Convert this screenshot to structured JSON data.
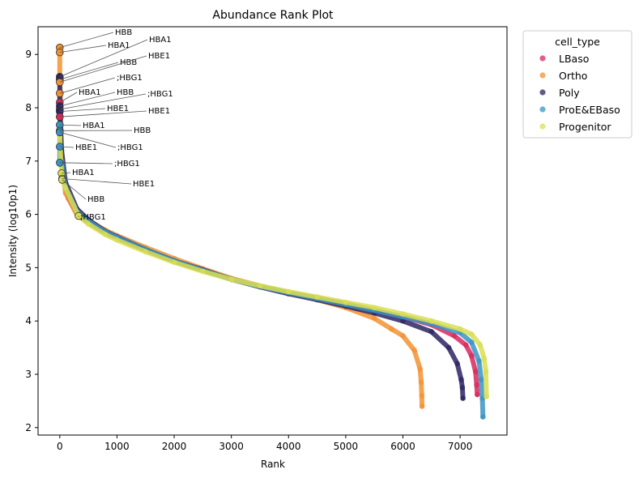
{
  "chart_data": {
    "type": "scatter",
    "title": "Abundance Rank Plot",
    "xlabel": "Rank",
    "ylabel": "Intensity (log10p1)",
    "xlim": [
      -380,
      7820
    ],
    "ylim": [
      1.86,
      9.52
    ],
    "xticks": [
      0,
      1000,
      2000,
      3000,
      4000,
      5000,
      6000,
      7000
    ],
    "yticks": [
      2,
      3,
      4,
      5,
      6,
      7,
      8,
      9
    ],
    "grid": false,
    "legend": {
      "title": "cell_type",
      "placement": "outside-top-right",
      "entries": [
        "LBaso",
        "Ortho",
        "Poly",
        "ProE&EBaso",
        "Progenitor"
      ]
    },
    "series": [
      {
        "name": "LBaso",
        "color": "#d8285e",
        "points": [
          [
            0,
            8.1
          ],
          [
            10,
            7.6
          ],
          [
            50,
            6.8
          ],
          [
            150,
            6.3
          ],
          [
            300,
            6.0
          ],
          [
            500,
            5.85
          ],
          [
            800,
            5.65
          ],
          [
            1000,
            5.56
          ],
          [
            1500,
            5.33
          ],
          [
            2000,
            5.12
          ],
          [
            2500,
            4.95
          ],
          [
            3000,
            4.78
          ],
          [
            3500,
            4.65
          ],
          [
            4000,
            4.53
          ],
          [
            4500,
            4.43
          ],
          [
            5000,
            4.32
          ],
          [
            5500,
            4.2
          ],
          [
            6000,
            4.08
          ],
          [
            6500,
            3.93
          ],
          [
            6900,
            3.72
          ],
          [
            7100,
            3.55
          ],
          [
            7200,
            3.35
          ],
          [
            7270,
            3.05
          ],
          [
            7290,
            2.8
          ],
          [
            7300,
            2.62
          ]
        ]
      },
      {
        "name": "Ortho",
        "color": "#f39232",
        "points": [
          [
            0,
            9.1
          ],
          [
            0,
            8.48
          ],
          [
            10,
            8.25
          ],
          [
            30,
            7.0
          ],
          [
            100,
            6.4
          ],
          [
            300,
            6.0
          ],
          [
            500,
            5.88
          ],
          [
            800,
            5.7
          ],
          [
            1000,
            5.6
          ],
          [
            1500,
            5.38
          ],
          [
            2000,
            5.17
          ],
          [
            2500,
            4.98
          ],
          [
            3000,
            4.8
          ],
          [
            3500,
            4.66
          ],
          [
            4000,
            4.53
          ],
          [
            4500,
            4.4
          ],
          [
            5000,
            4.25
          ],
          [
            5500,
            4.05
          ],
          [
            5800,
            3.85
          ],
          [
            6000,
            3.72
          ],
          [
            6200,
            3.45
          ],
          [
            6300,
            3.1
          ],
          [
            6320,
            2.85
          ],
          [
            6330,
            2.6
          ],
          [
            6335,
            2.4
          ]
        ]
      },
      {
        "name": "Poly",
        "color": "#2c2462",
        "points": [
          [
            0,
            8.58
          ],
          [
            0,
            8.0
          ],
          [
            0,
            7.95
          ],
          [
            30,
            7.2
          ],
          [
            100,
            6.6
          ],
          [
            300,
            6.1
          ],
          [
            500,
            5.9
          ],
          [
            800,
            5.68
          ],
          [
            1000,
            5.58
          ],
          [
            1500,
            5.34
          ],
          [
            2000,
            5.13
          ],
          [
            2500,
            4.96
          ],
          [
            3000,
            4.78
          ],
          [
            3500,
            4.64
          ],
          [
            4000,
            4.51
          ],
          [
            4500,
            4.4
          ],
          [
            5000,
            4.28
          ],
          [
            5500,
            4.15
          ],
          [
            6000,
            4.0
          ],
          [
            6500,
            3.8
          ],
          [
            6800,
            3.5
          ],
          [
            6950,
            3.2
          ],
          [
            7020,
            2.9
          ],
          [
            7040,
            2.75
          ],
          [
            7050,
            2.55
          ]
        ]
      },
      {
        "name": "ProE&EBaso",
        "color": "#3a94c4",
        "points": [
          [
            0,
            7.7
          ],
          [
            0,
            7.55
          ],
          [
            0,
            7.28
          ],
          [
            0,
            6.97
          ],
          [
            30,
            7.0
          ],
          [
            100,
            6.5
          ],
          [
            300,
            6.05
          ],
          [
            500,
            5.87
          ],
          [
            800,
            5.67
          ],
          [
            1000,
            5.57
          ],
          [
            1500,
            5.34
          ],
          [
            2000,
            5.13
          ],
          [
            2500,
            4.95
          ],
          [
            3000,
            4.78
          ],
          [
            3500,
            4.65
          ],
          [
            4000,
            4.53
          ],
          [
            4500,
            4.42
          ],
          [
            5000,
            4.31
          ],
          [
            5500,
            4.2
          ],
          [
            6000,
            4.08
          ],
          [
            6500,
            3.95
          ],
          [
            7000,
            3.78
          ],
          [
            7200,
            3.6
          ],
          [
            7330,
            3.25
          ],
          [
            7370,
            2.9
          ],
          [
            7390,
            2.55
          ],
          [
            7400,
            2.2
          ]
        ]
      },
      {
        "name": "Progenitor",
        "color": "#d9df51",
        "points": [
          [
            0,
            7.45
          ],
          [
            30,
            6.75
          ],
          [
            40,
            6.65
          ],
          [
            330,
            5.97
          ],
          [
            100,
            6.5
          ],
          [
            500,
            5.82
          ],
          [
            800,
            5.62
          ],
          [
            1000,
            5.52
          ],
          [
            1500,
            5.3
          ],
          [
            2000,
            5.1
          ],
          [
            2500,
            4.93
          ],
          [
            3000,
            4.78
          ],
          [
            3500,
            4.66
          ],
          [
            4000,
            4.55
          ],
          [
            4500,
            4.45
          ],
          [
            5000,
            4.35
          ],
          [
            5500,
            4.25
          ],
          [
            6000,
            4.13
          ],
          [
            6500,
            4.0
          ],
          [
            7000,
            3.85
          ],
          [
            7200,
            3.75
          ],
          [
            7350,
            3.55
          ],
          [
            7420,
            3.3
          ],
          [
            7450,
            3.05
          ],
          [
            7460,
            2.58
          ]
        ]
      }
    ],
    "annotations": [
      {
        "label": "HBB",
        "x": 0,
        "y": 9.13,
        "series": "Ortho"
      },
      {
        "label": "HBA1",
        "x": 0,
        "y": 9.04,
        "series": "Ortho"
      },
      {
        "label": "HBA1",
        "x": 0,
        "y": 8.58,
        "series": "Poly"
      },
      {
        "label": "HBB",
        "x": 0,
        "y": 8.53,
        "series": "Poly"
      },
      {
        "label": "HBE1",
        "x": 0,
        "y": 8.48,
        "series": "Ortho"
      },
      {
        "label": ";HBG1",
        "x": 0,
        "y": 8.27,
        "series": "Ortho"
      },
      {
        "label": "HBA1",
        "x": 0,
        "y": 8.1,
        "series": "LBaso"
      },
      {
        "label": "HBB",
        "x": 0,
        "y": 8.03,
        "series": "Poly"
      },
      {
        "label": ";HBG1",
        "x": 0,
        "y": 7.97,
        "series": "Poly"
      },
      {
        "label": "HBE1",
        "x": 0,
        "y": 7.93,
        "series": "Poly"
      },
      {
        "label": "HBE1",
        "x": 0,
        "y": 7.83,
        "series": "LBaso"
      },
      {
        "label": "HBA1",
        "x": 0,
        "y": 7.68,
        "series": "ProE&EBaso"
      },
      {
        "label": "HBB",
        "x": 0,
        "y": 7.57,
        "series": "ProE&EBaso"
      },
      {
        "label": ";HBG1",
        "x": 0,
        "y": 7.54,
        "series": "ProE&EBaso"
      },
      {
        "label": "HBE1",
        "x": 0,
        "y": 7.27,
        "series": "ProE&EBaso"
      },
      {
        "label": ";HBG1",
        "x": 0,
        "y": 6.97,
        "series": "ProE&EBaso"
      },
      {
        "label": "HBA1",
        "x": 30,
        "y": 6.77,
        "series": "Progenitor"
      },
      {
        "label": "HBE1",
        "x": 40,
        "y": 6.67,
        "series": "Progenitor"
      },
      {
        "label": "HBB",
        "x": 40,
        "y": 6.65,
        "series": "Progenitor"
      },
      {
        "label": ";HBG1",
        "x": 330,
        "y": 5.97,
        "series": "Progenitor"
      }
    ]
  }
}
